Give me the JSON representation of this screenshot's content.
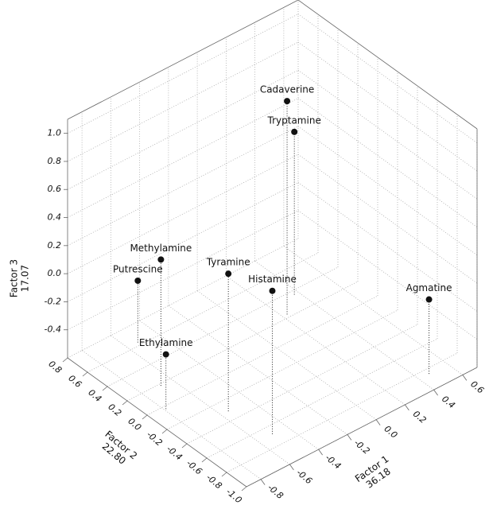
{
  "chart_data": {
    "type": "scatter3d",
    "labels": [
      "Cadaverine",
      "Tryptamine",
      "Methylamine",
      "Putrescine",
      "Tyramine",
      "Histamine",
      "Agmatine",
      "Ethylamine"
    ],
    "x": [
      0.23,
      0.37,
      -0.68,
      -0.53,
      -0.55,
      -0.5,
      0.47,
      -0.79
    ],
    "y": [
      0.23,
      0.36,
      0.18,
      0.63,
      -0.31,
      -0.68,
      -0.85,
      -0.03
    ],
    "z": [
      0.92,
      0.56,
      0.3,
      -0.16,
      0.38,
      0.42,
      -0.07,
      -0.21
    ],
    "color": "#111111",
    "xlabel": [
      "Factor 1",
      "36.18"
    ],
    "ylabel": [
      "Factor 2",
      "22.80"
    ],
    "zlabel": [
      "Factor 3",
      "17.07"
    ],
    "xlim": [
      -0.9,
      0.7
    ],
    "ylim": [
      -1.0,
      0.8
    ],
    "zlim": [
      -0.6,
      1.1
    ],
    "xticks": [
      -0.8,
      -0.6,
      -0.4,
      -0.2,
      {
        "value": 0,
        "label": "0.0"
      },
      0.2,
      0.4,
      0.6
    ],
    "yticks": [
      {
        "value": -1,
        "label": "-1.0"
      },
      -0.8,
      -0.6,
      -0.4,
      -0.2,
      {
        "value": 0,
        "label": "0.0"
      },
      0.2,
      0.4,
      0.6,
      0.8
    ],
    "zticks": [
      -0.4,
      -0.2,
      {
        "value": 0,
        "label": "0.0"
      },
      0.2,
      0.4,
      0.6,
      0.8,
      {
        "value": 1,
        "label": "1.0"
      }
    ],
    "grid": true
  }
}
